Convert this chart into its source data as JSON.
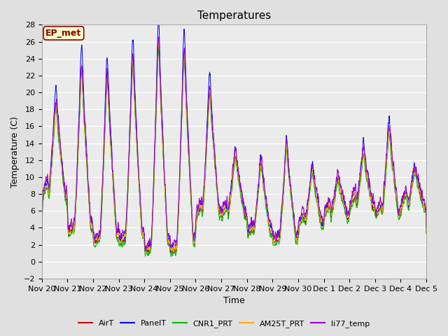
{
  "title": "Temperatures",
  "ylabel": "Temperature (C)",
  "xlabel": "Time",
  "ylim": [
    -2,
    28
  ],
  "yticks": [
    -2,
    0,
    2,
    4,
    6,
    8,
    10,
    12,
    14,
    16,
    18,
    20,
    22,
    24,
    26,
    28
  ],
  "series_colors": {
    "AirT": "#cc0000",
    "PanelT": "#0000ee",
    "CNR1_PRT": "#00bb00",
    "AM25T_PRT": "#ffaa00",
    "li77_temp": "#9900cc"
  },
  "series_names": [
    "AirT",
    "PanelT",
    "CNR1_PRT",
    "AM25T_PRT",
    "li77_temp"
  ],
  "xtick_labels": [
    "Nov 20",
    "Nov 21",
    "Nov 22",
    "Nov 23",
    "Nov 24",
    "Nov 25",
    "Nov 26",
    "Nov 27",
    "Nov 28",
    "Nov 29",
    "Nov 30",
    "Dec 1",
    "Dec 2",
    "Dec 3",
    "Dec 4",
    "Dec 5"
  ],
  "annotation_text": "EP_met",
  "background_color": "#e0e0e0",
  "plot_bg_color": "#ebebeb",
  "title_fontsize": 11,
  "axis_fontsize": 9,
  "tick_fontsize": 8,
  "legend_fontsize": 8,
  "day_peaks": [
    19,
    24,
    23,
    25,
    27,
    26,
    21,
    13,
    12,
    14,
    11,
    10,
    13,
    16,
    11
  ],
  "day_mins": [
    7,
    3,
    2,
    2,
    1,
    1,
    5,
    5,
    3,
    2,
    4,
    5,
    6,
    5,
    6
  ]
}
